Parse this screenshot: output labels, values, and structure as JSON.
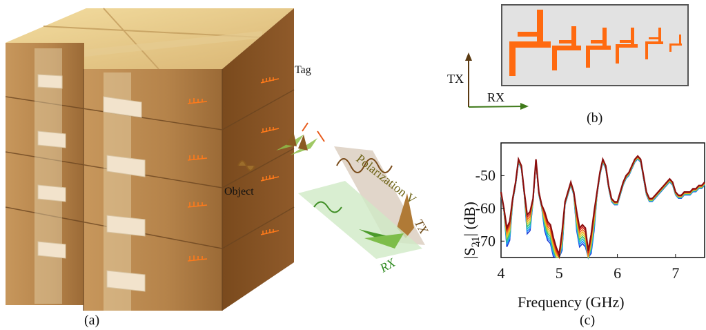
{
  "panel_a": {
    "caption": "(a)",
    "tag_label": "Tag",
    "object_label": "Object",
    "polarization_label": "Polarization V",
    "tx_label": "TX",
    "rx_label": "RX"
  },
  "panel_b": {
    "caption": "(b)",
    "tx_axis_label": "TX",
    "rx_axis_label": "RX",
    "tag_color": "#ff6a10",
    "background_color": "#e2e2e2"
  },
  "panel_c": {
    "caption": "(c)"
  },
  "chart_data": {
    "type": "line",
    "xlabel": "Frequency (GHz)",
    "ylabel": "|S21| (dB)",
    "ylabel_parts": [
      "|S",
      "21",
      "| (dB)"
    ],
    "xlim": [
      4,
      7.5
    ],
    "ylim": [
      -75,
      -40
    ],
    "xticks": [
      4,
      5,
      6,
      7
    ],
    "yticks": [
      -50,
      -60,
      -70
    ],
    "series_colors": [
      "#1f3fd6",
      "#1e90ff",
      "#22c3c3",
      "#3fc26b",
      "#c8d43a",
      "#f2b21f",
      "#f06a1f",
      "#d8261e",
      "#8b0f0f"
    ],
    "x": [
      4.0,
      4.05,
      4.1,
      4.15,
      4.2,
      4.25,
      4.3,
      4.35,
      4.4,
      4.45,
      4.5,
      4.55,
      4.6,
      4.65,
      4.7,
      4.75,
      4.8,
      4.85,
      4.9,
      4.95,
      5.0,
      5.05,
      5.1,
      5.15,
      5.2,
      5.25,
      5.3,
      5.35,
      5.4,
      5.45,
      5.5,
      5.55,
      5.6,
      5.65,
      5.7,
      5.75,
      5.8,
      5.85,
      5.9,
      5.95,
      6.0,
      6.05,
      6.1,
      6.15,
      6.2,
      6.25,
      6.3,
      6.35,
      6.4,
      6.45,
      6.5,
      6.55,
      6.6,
      6.65,
      6.7,
      6.75,
      6.8,
      6.85,
      6.9,
      6.95,
      7.0,
      7.05,
      7.1,
      7.15,
      7.2,
      7.25,
      7.3,
      7.35,
      7.4,
      7.45,
      7.5
    ],
    "y": [
      -55,
      -60,
      -66,
      -64,
      -57,
      -52,
      -45,
      -47,
      -55,
      -62,
      -61,
      -57,
      -45,
      -55,
      -59,
      -61,
      -64,
      -65,
      -69,
      -72,
      -74,
      -67,
      -58,
      -55,
      -52,
      -55,
      -61,
      -66,
      -65,
      -66,
      -73,
      -68,
      -61,
      -55,
      -49,
      -45,
      -47,
      -53,
      -57,
      -58,
      -58,
      -55,
      -52,
      -50,
      -49,
      -47,
      -45,
      -44,
      -45,
      -50,
      -55,
      -57,
      -57,
      -56,
      -55,
      -54,
      -53,
      -52,
      -51,
      -52,
      -55,
      -56,
      -56,
      -55,
      -55,
      -55,
      -54,
      -54,
      -53,
      -53,
      -52
    ]
  }
}
